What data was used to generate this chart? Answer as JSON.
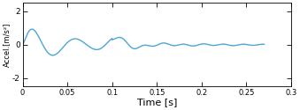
{
  "title": "",
  "xlabel": "Time [s]",
  "ylabel": "Accel.[m/s²]",
  "xlim": [
    0,
    0.27
  ],
  "ylim": [
    -2.5,
    2.5
  ],
  "yticks": [
    -2,
    0,
    2
  ],
  "xticks": [
    0,
    0.05,
    0.1,
    0.15,
    0.2,
    0.25
  ],
  "xtick_labels": [
    "0",
    "0.05",
    "0.1",
    "0.15",
    "0.2",
    "0.25"
  ],
  "xlim_display": [
    0,
    0.3
  ],
  "line_color": "#4da6d4",
  "line_width": 1.0,
  "background_color": "#ffffff",
  "figsize": [
    3.39,
    1.25
  ],
  "dpi": 100
}
